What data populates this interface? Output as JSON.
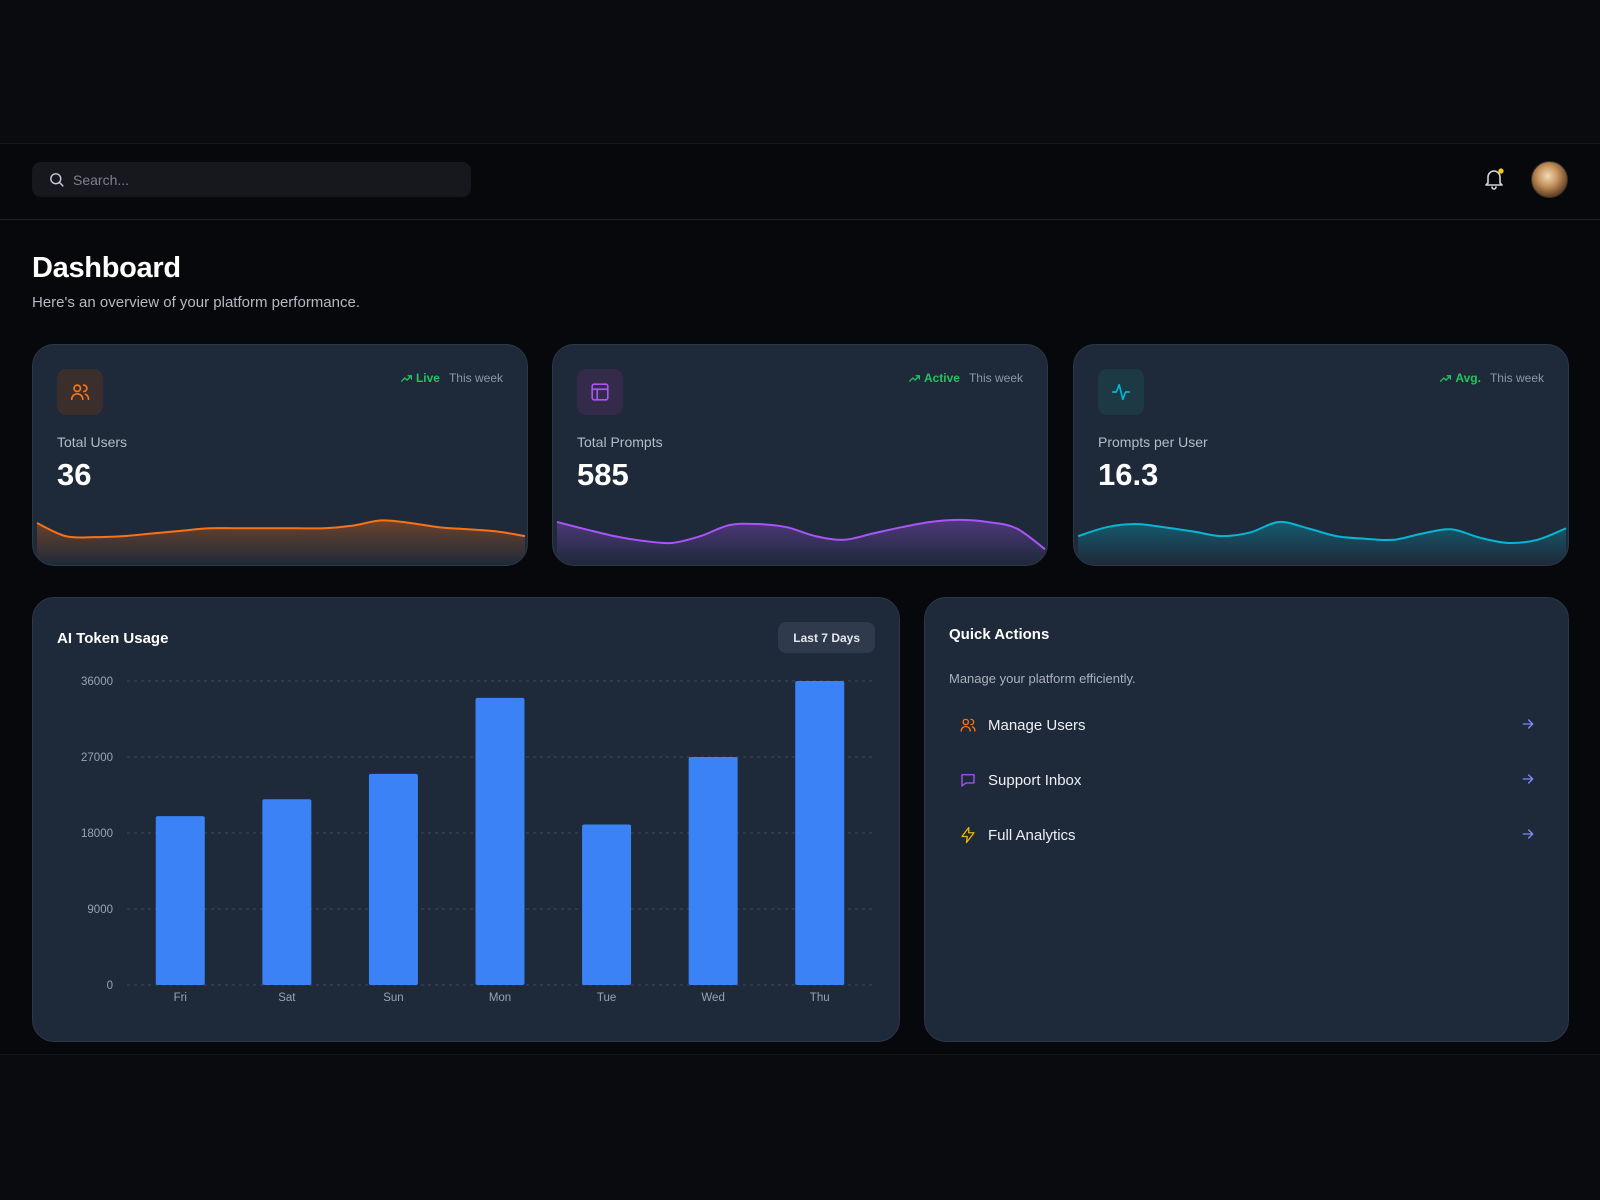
{
  "search": {
    "placeholder": "Search..."
  },
  "header": {
    "title": "Dashboard",
    "subtitle": "Here's an overview of your platform performance."
  },
  "stats": [
    {
      "label": "Total Users",
      "value": "36",
      "trend_tag": "Live",
      "period": "This week",
      "icon": "users-icon",
      "color": "#f97316",
      "icon_bg": "#3a2f2c",
      "sparkline": [
        0.8,
        0.55,
        0.53,
        0.55,
        0.6,
        0.65,
        0.7,
        0.7,
        0.7,
        0.7,
        0.7,
        0.75,
        0.85,
        0.8,
        0.72,
        0.68,
        0.64,
        0.55
      ]
    },
    {
      "label": "Total Prompts",
      "value": "585",
      "trend_tag": "Active",
      "period": "This week",
      "icon": "layout-icon",
      "color": "#a855f7",
      "icon_bg": "#342a4a",
      "sparkline": [
        0.82,
        0.68,
        0.55,
        0.46,
        0.42,
        0.55,
        0.76,
        0.78,
        0.72,
        0.55,
        0.48,
        0.6,
        0.72,
        0.82,
        0.86,
        0.82,
        0.7,
        0.3
      ]
    },
    {
      "label": "Prompts per User",
      "value": "16.3",
      "trend_tag": "Avg.",
      "period": "This week",
      "icon": "activity-icon",
      "color": "#06b6d4",
      "icon_bg": "#1d3a44",
      "sparkline": [
        0.55,
        0.72,
        0.78,
        0.72,
        0.64,
        0.55,
        0.62,
        0.82,
        0.7,
        0.55,
        0.5,
        0.48,
        0.6,
        0.68,
        0.52,
        0.42,
        0.48,
        0.7
      ]
    }
  ],
  "token_usage": {
    "title": "AI Token Usage",
    "range_label": "Last 7 Days"
  },
  "chart_data": {
    "type": "bar",
    "title": "AI Token Usage",
    "categories": [
      "Fri",
      "Sat",
      "Sun",
      "Mon",
      "Tue",
      "Wed",
      "Thu"
    ],
    "values": [
      20000,
      22000,
      25000,
      34000,
      19000,
      27000,
      36000
    ],
    "yticks": [
      0,
      9000,
      18000,
      27000,
      36000
    ],
    "ylim": [
      0,
      36000
    ],
    "color": "#3b82f6",
    "grid": true
  },
  "quick_actions": {
    "title": "Quick Actions",
    "subtitle": "Manage your platform efficiently.",
    "items": [
      {
        "label": "Manage Users",
        "icon": "users-icon",
        "color": "#f97316"
      },
      {
        "label": "Support Inbox",
        "icon": "message-square-icon",
        "color": "#a855f7"
      },
      {
        "label": "Full Analytics",
        "icon": "zap-icon",
        "color": "#eab308"
      }
    ],
    "arrow_color": "#818cf8"
  }
}
